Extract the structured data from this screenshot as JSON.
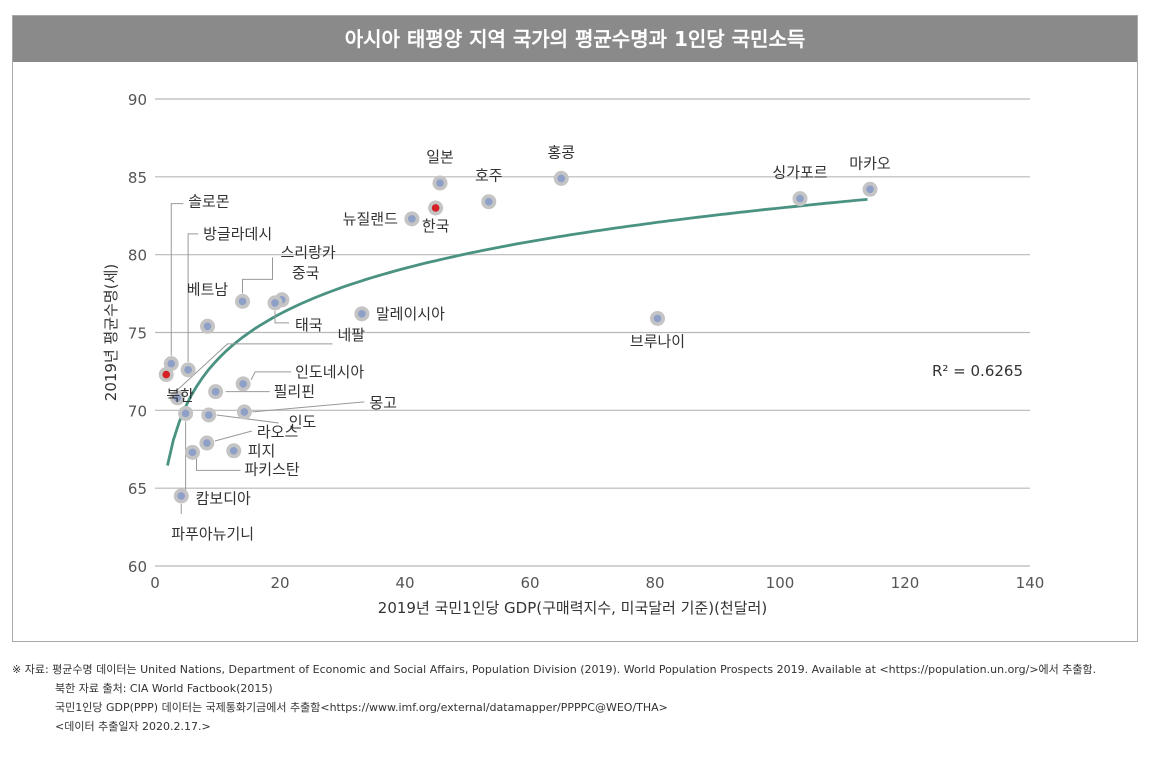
{
  "chart_data": {
    "type": "scatter",
    "title": "아시아 태평양 지역 국가의 평균수명과 1인당 국민소득",
    "xlabel": "2019년 국민1인당 GDP(구매력지수, 미국달러 기준)(천달러)",
    "ylabel": "2019년 평균수명(세)",
    "xlim": [
      0,
      140
    ],
    "ylim": [
      60,
      90
    ],
    "xticks": [
      0,
      20,
      40,
      60,
      80,
      100,
      120,
      140
    ],
    "yticks": [
      60,
      65,
      70,
      75,
      80,
      85,
      90
    ],
    "grid": "horizontal",
    "r2_label": "R² = 0.6265",
    "trendline": {
      "type": "logarithmic",
      "x_range": [
        2,
        114
      ]
    },
    "points": [
      {
        "name": "마카오",
        "x": 114.4,
        "y": 84.2,
        "highlight": false
      },
      {
        "name": "싱가포르",
        "x": 103.2,
        "y": 83.6,
        "highlight": false
      },
      {
        "name": "홍콩",
        "x": 65.0,
        "y": 84.9,
        "highlight": false
      },
      {
        "name": "일본",
        "x": 45.6,
        "y": 84.6,
        "highlight": false
      },
      {
        "name": "호주",
        "x": 53.4,
        "y": 83.4,
        "highlight": false
      },
      {
        "name": "한국",
        "x": 44.9,
        "y": 83.0,
        "highlight": true
      },
      {
        "name": "뉴질랜드",
        "x": 41.1,
        "y": 82.3,
        "highlight": false
      },
      {
        "name": "브루나이",
        "x": 80.4,
        "y": 75.9,
        "highlight": false
      },
      {
        "name": "말레이시아",
        "x": 33.1,
        "y": 76.2,
        "highlight": false
      },
      {
        "name": "중국",
        "x": 20.3,
        "y": 77.1,
        "highlight": false
      },
      {
        "name": "태국",
        "x": 19.2,
        "y": 76.9,
        "highlight": false
      },
      {
        "name": "스리랑카",
        "x": 14.0,
        "y": 77.0,
        "highlight": false
      },
      {
        "name": "베트남",
        "x": 8.4,
        "y": 75.4,
        "highlight": false
      },
      {
        "name": "인도네시아",
        "x": 14.1,
        "y": 71.7,
        "highlight": false
      },
      {
        "name": "필리핀",
        "x": 9.7,
        "y": 71.2,
        "highlight": false
      },
      {
        "name": "몽고",
        "x": 14.3,
        "y": 69.9,
        "highlight": false
      },
      {
        "name": "인도",
        "x": 8.6,
        "y": 69.7,
        "highlight": false
      },
      {
        "name": "라오스",
        "x": 8.3,
        "y": 67.9,
        "highlight": false
      },
      {
        "name": "피지",
        "x": 12.6,
        "y": 67.4,
        "highlight": false
      },
      {
        "name": "파키스탄",
        "x": 6.0,
        "y": 67.3,
        "highlight": false
      },
      {
        "name": "캄보디아",
        "x": 4.9,
        "y": 69.8,
        "highlight": false
      },
      {
        "name": "파푸아뉴기니",
        "x": 4.2,
        "y": 64.5,
        "highlight": false
      },
      {
        "name": "솔로몬",
        "x": 2.6,
        "y": 73.0,
        "highlight": false
      },
      {
        "name": "방글라데시",
        "x": 5.3,
        "y": 72.6,
        "highlight": false
      },
      {
        "name": "네팔",
        "x": 3.6,
        "y": 70.8,
        "highlight": false
      },
      {
        "name": "북한",
        "x": 1.8,
        "y": 72.3,
        "highlight": true
      }
    ]
  },
  "colors": {
    "title_bg": "#8a8a8a",
    "point_fill": "#8e9fc8",
    "point_ring": "#c4c4c4",
    "highlight_fill": "#d42026",
    "trendline": "#4a9282",
    "grid": "#b8b8b8"
  },
  "notes": {
    "line1": "※ 자료: 평균수명 데이터는 United Nations, Department of Economic and Social Affairs, Population Division (2019). World Population Prospects 2019. Available at <https://population.un.org/>에서 추출함.",
    "line2": "북한 자료 출처: CIA World Factbook(2015)",
    "line3": "국민1인당 GDP(PPP) 데이터는 국제통화기금에서 추출함<https://www.imf.org/external/datamapper/PPPPC@WEO/THA>",
    "line4": "<데이터 추출일자 2020.2.17.>"
  }
}
